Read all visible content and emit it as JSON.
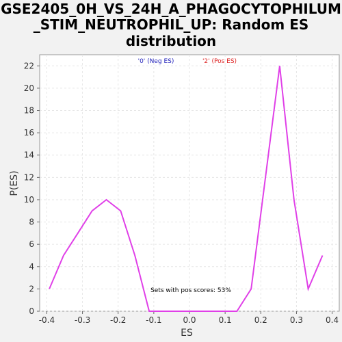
{
  "chart_data": {
    "type": "line",
    "title_lines": [
      "GSE2405_0H_VS_24H_A_PHAGOCYTOPHILUM",
      "_STIM_NEUTROPHIL_UP: Random ES",
      "distribution"
    ],
    "xlabel": "ES",
    "ylabel": "P(ES)",
    "xlim": [
      -0.42,
      0.42
    ],
    "ylim": [
      0,
      23
    ],
    "xticks": [
      -0.4,
      -0.3,
      -0.2,
      -0.1,
      0.0,
      0.1,
      0.2,
      0.3,
      0.4
    ],
    "xtick_labels": [
      "-0.4",
      "-0.3",
      "-0.2",
      "-0.1",
      "0.0",
      "0.1",
      "0.2",
      "0.3",
      "0.4"
    ],
    "yticks": [
      0,
      2,
      4,
      6,
      8,
      10,
      12,
      14,
      16,
      18,
      20,
      22
    ],
    "ytick_labels": [
      "0",
      "2",
      "4",
      "6",
      "8",
      "10",
      "12",
      "14",
      "16",
      "18",
      "20",
      "22"
    ],
    "grid": true,
    "legend": [
      {
        "label": "'0' (Neg ES)",
        "color": "#2222bb"
      },
      {
        "label": "'2' (Pos ES)",
        "color": "#dd2222"
      }
    ],
    "annotation": "Sets with pos scores: 53%",
    "series_color": "#e040e8",
    "x": [
      -0.393,
      -0.353,
      -0.313,
      -0.273,
      -0.233,
      -0.193,
      -0.153,
      -0.113,
      -0.073,
      -0.033,
      0.007,
      0.047,
      0.087,
      0.133,
      0.173,
      0.213,
      0.253,
      0.293,
      0.333,
      0.373
    ],
    "y": [
      2,
      5,
      7,
      9,
      10,
      9,
      5,
      0,
      0,
      0,
      0,
      0,
      0,
      0,
      2,
      12,
      22,
      10,
      2,
      5
    ]
  }
}
